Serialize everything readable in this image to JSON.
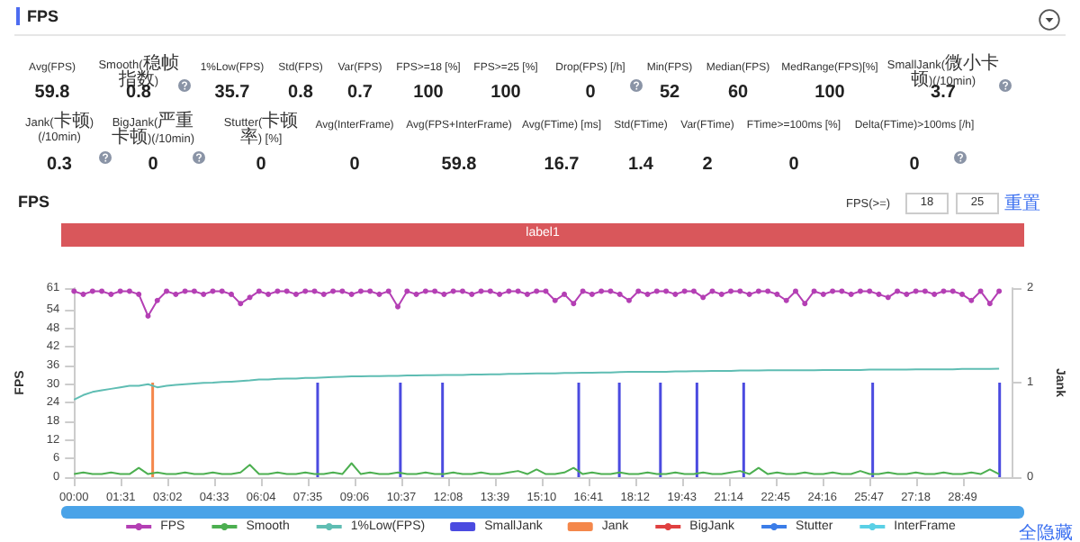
{
  "chart_data": [
    {
      "type": "other",
      "title": "FPS",
      "annotations": [
        "Avg(FPS)",
        "59.8",
        "Smooth(稳帧指数)",
        "0.8",
        "1%Low(FPS)",
        "35.7",
        "Std(FPS)",
        "0.8",
        "Var(FPS)",
        "0.7",
        "FPS>=18 [%]",
        "100",
        "FPS>=25 [%]",
        "100",
        "Drop(FPS) [/h]",
        "0",
        "Min(FPS)",
        "52",
        "Median(FPS)",
        "60",
        "MedRange(FPS)[%]",
        "100",
        "SmallJank(微小卡顿)(/10min)",
        "3.7",
        "Jank(卡顿)(/10min)",
        "0.3",
        "BigJank(严重卡顿)(/10min)",
        "0",
        "Stutter(卡顿率) [%]",
        "0",
        "Avg(InterFrame)",
        "0",
        "Avg(FPS+InterFrame)",
        "59.8",
        "Avg(FTime) [ms]",
        "16.7",
        "Std(FTime)",
        "1.4",
        "Var(FTime)",
        "2",
        "FTime>=100ms [%]",
        "0",
        "Delta(FTime)>100ms [/h]",
        "0"
      ]
    },
    {
      "type": "line",
      "title": "FPS",
      "ylabel": "FPS",
      "y2label": "Jank",
      "legend": "bottom",
      "annotations": [
        "label1",
        "FPS(>=)",
        "18",
        "25",
        "重置",
        "全隐藏"
      ],
      "x": [
        0,
        18,
        36,
        54,
        72,
        90,
        108,
        126,
        144,
        162,
        180,
        198,
        216,
        234,
        252,
        270,
        288,
        306,
        324,
        342,
        360,
        378,
        396,
        414,
        432,
        450,
        468,
        486,
        504,
        522,
        540,
        558,
        576,
        594,
        612,
        630,
        648,
        666,
        684,
        702,
        720,
        738,
        756,
        774,
        792,
        810,
        828,
        846,
        864,
        882,
        900,
        918,
        936,
        954,
        972,
        990,
        1008,
        1026,
        1044,
        1062,
        1080,
        1098,
        1116,
        1134,
        1152,
        1170,
        1188,
        1206,
        1224,
        1242,
        1260,
        1278,
        1296,
        1314,
        1332,
        1350,
        1368,
        1386,
        1404,
        1422,
        1440,
        1458,
        1476,
        1494,
        1512,
        1530,
        1548,
        1566,
        1584,
        1602,
        1620,
        1638,
        1656,
        1674,
        1692,
        1710,
        1728,
        1746,
        1764,
        1782,
        1800
      ],
      "xlim": [
        0,
        1826
      ],
      "xticks": [
        {
          "value": 0,
          "label": "00:00"
        },
        {
          "value": 91,
          "label": "01:31"
        },
        {
          "value": 182,
          "label": "03:02"
        },
        {
          "value": 273,
          "label": "04:33"
        },
        {
          "value": 364,
          "label": "06:04"
        },
        {
          "value": 455,
          "label": "07:35"
        },
        {
          "value": 546,
          "label": "09:06"
        },
        {
          "value": 637,
          "label": "10:37"
        },
        {
          "value": 728,
          "label": "12:08"
        },
        {
          "value": 819,
          "label": "13:39"
        },
        {
          "value": 910,
          "label": "15:10"
        },
        {
          "value": 1001,
          "label": "16:41"
        },
        {
          "value": 1092,
          "label": "18:12"
        },
        {
          "value": 1183,
          "label": "19:43"
        },
        {
          "value": 1274,
          "label": "21:14"
        },
        {
          "value": 1365,
          "label": "22:45"
        },
        {
          "value": 1456,
          "label": "24:16"
        },
        {
          "value": 1547,
          "label": "25:47"
        },
        {
          "value": 1638,
          "label": "27:18"
        },
        {
          "value": 1729,
          "label": "28:49"
        }
      ],
      "ylim": [
        0,
        61
      ],
      "yticks": [
        0,
        6,
        12,
        18,
        24,
        30,
        36,
        42,
        48,
        54,
        61
      ],
      "y2lim": [
        0,
        2
      ],
      "y2ticks": [
        0,
        1,
        2
      ],
      "series": [
        {
          "name": "FPS",
          "color": "#b43fb4",
          "marker": "circle",
          "values": [
            60,
            59,
            60,
            60,
            59,
            60,
            60,
            59,
            52,
            57,
            60,
            59,
            60,
            60,
            59,
            60,
            60,
            59,
            56,
            58,
            60,
            59,
            60,
            60,
            59,
            60,
            60,
            59,
            60,
            60,
            59,
            60,
            60,
            59,
            60,
            55,
            60,
            59,
            60,
            60,
            59,
            60,
            60,
            59,
            60,
            60,
            59,
            60,
            60,
            59,
            60,
            60,
            57,
            59,
            56,
            60,
            59,
            60,
            60,
            59,
            57,
            60,
            59,
            60,
            60,
            59,
            60,
            60,
            58,
            60,
            59,
            60,
            60,
            59,
            60,
            60,
            59,
            57,
            60,
            56,
            60,
            59,
            60,
            60,
            59,
            60,
            60,
            59,
            58,
            60,
            59,
            60,
            60,
            59,
            60,
            60,
            59,
            57,
            60,
            56,
            60
          ]
        },
        {
          "name": "Smooth",
          "color": "#4caf50",
          "values": [
            1,
            1.5,
            1,
            1,
            1.5,
            1,
            1,
            3,
            1,
            1.5,
            1,
            1,
            1.5,
            1,
            1,
            1.5,
            1,
            1,
            1.5,
            4,
            1,
            1,
            1.5,
            1,
            1,
            1.5,
            1,
            1,
            1.5,
            1,
            4.5,
            1,
            1.5,
            1,
            1,
            1.5,
            1,
            1,
            1.5,
            1,
            1,
            1.5,
            1,
            1,
            1.5,
            1,
            1,
            1.5,
            2,
            1,
            2.5,
            1,
            1,
            1.5,
            3,
            1,
            1.5,
            1,
            1,
            1.5,
            1,
            1,
            1.5,
            1,
            1,
            1.5,
            1,
            1,
            1.5,
            1,
            1,
            1.5,
            2,
            1,
            3,
            1,
            1.5,
            1,
            1,
            1.5,
            1,
            1,
            1.5,
            1,
            1,
            2,
            1,
            1,
            1.5,
            1,
            1,
            1.5,
            1,
            1,
            1.5,
            1,
            1,
            1.5,
            1,
            2.5,
            1
          ]
        },
        {
          "name": "1%Low(FPS)",
          "color": "#5fbdb3",
          "values": [
            25,
            26.5,
            27.5,
            28,
            28.5,
            29,
            29.5,
            29.5,
            30,
            29,
            29.5,
            29.8,
            30,
            30.2,
            30.4,
            30.5,
            30.7,
            30.8,
            31,
            31.2,
            31.5,
            31.5,
            31.7,
            31.8,
            31.8,
            32,
            32,
            32.2,
            32.3,
            32.4,
            32.5,
            32.5,
            32.6,
            32.6,
            32.7,
            32.7,
            32.8,
            32.8,
            32.9,
            32.9,
            33,
            33,
            33,
            33.1,
            33.1,
            33.2,
            33.2,
            33.3,
            33.3,
            33.4,
            33.5,
            33.5,
            33.5,
            33.6,
            33.6,
            33.7,
            33.7,
            33.8,
            33.8,
            33.9,
            34,
            34,
            34,
            34,
            34,
            34.1,
            34.1,
            34.2,
            34.2,
            34.3,
            34.3,
            34.3,
            34.4,
            34.4,
            34.4,
            34.5,
            34.5,
            34.5,
            34.5,
            34.5,
            34.5,
            34.6,
            34.6,
            34.6,
            34.6,
            34.6,
            34.7,
            34.7,
            34.7,
            34.7,
            34.7,
            34.8,
            34.8,
            34.8,
            34.8,
            34.8,
            34.9,
            34.9,
            34.9,
            34.9,
            35
          ]
        },
        {
          "name": "SmallJank",
          "color": "#4b4be0",
          "type": "bar",
          "axis": "y2",
          "x": [
            474,
            635,
            717,
            982,
            1061,
            1141,
            1212,
            1303,
            1554,
            1801
          ],
          "values": [
            1,
            1,
            1,
            1,
            1,
            1,
            1,
            1,
            1,
            1
          ]
        },
        {
          "name": "Jank",
          "color": "#f4874b",
          "type": "bar",
          "axis": "y2",
          "x": [
            153
          ],
          "values": [
            1
          ]
        },
        {
          "name": "BigJank",
          "color": "#e04040",
          "values": [
            null,
            null,
            null,
            null,
            null,
            null,
            null,
            null,
            null,
            null,
            null,
            null,
            null,
            null,
            null,
            null,
            null,
            null,
            null,
            null,
            null,
            null,
            null,
            null,
            null,
            null,
            null,
            null,
            null,
            null,
            null,
            null,
            null,
            null,
            null,
            null,
            null,
            null,
            null,
            null,
            null,
            null,
            null,
            null,
            null,
            null,
            null,
            null,
            null,
            null,
            null,
            null,
            null,
            null,
            null,
            null,
            null,
            null,
            null,
            null,
            null,
            null,
            null,
            null,
            null,
            null,
            null,
            null,
            null,
            null,
            null,
            null,
            null,
            null,
            null,
            null,
            null,
            null,
            null,
            null,
            null,
            null,
            null,
            null,
            null,
            null,
            null,
            null,
            null,
            null,
            null,
            null,
            null,
            null,
            null,
            null,
            null,
            null,
            null,
            null,
            null
          ]
        },
        {
          "name": "Stutter",
          "color": "#3b7de8",
          "values": [
            null,
            null,
            null,
            null,
            null,
            null,
            null,
            null,
            null,
            null,
            null,
            null,
            null,
            null,
            null,
            null,
            null,
            null,
            null,
            null,
            null,
            null,
            null,
            null,
            null,
            null,
            null,
            null,
            null,
            null,
            null,
            null,
            null,
            null,
            null,
            null,
            null,
            null,
            null,
            null,
            null,
            null,
            null,
            null,
            null,
            null,
            null,
            null,
            null,
            null,
            null,
            null,
            null,
            null,
            null,
            null,
            null,
            null,
            null,
            null,
            null,
            null,
            null,
            null,
            null,
            null,
            null,
            null,
            null,
            null,
            null,
            null,
            null,
            null,
            null,
            null,
            null,
            null,
            null,
            null,
            null,
            null,
            null,
            null,
            null,
            null,
            null,
            null,
            null,
            null,
            null,
            null,
            null,
            null,
            null,
            null,
            null,
            null,
            null,
            null,
            null
          ]
        },
        {
          "name": "InterFrame",
          "color": "#5ad0e6",
          "values": [
            null,
            null,
            null,
            null,
            null,
            null,
            null,
            null,
            null,
            null,
            null,
            null,
            null,
            null,
            null,
            null,
            null,
            null,
            null,
            null,
            null,
            null,
            null,
            null,
            null,
            null,
            null,
            null,
            null,
            null,
            null,
            null,
            null,
            null,
            null,
            null,
            null,
            null,
            null,
            null,
            null,
            null,
            null,
            null,
            null,
            null,
            null,
            null,
            null,
            null,
            null,
            null,
            null,
            null,
            null,
            null,
            null,
            null,
            null,
            null,
            null,
            null,
            null,
            null,
            null,
            null,
            null,
            null,
            null,
            null,
            null,
            null,
            null,
            null,
            null,
            null,
            null,
            null,
            null,
            null,
            null,
            null,
            null,
            null,
            null,
            null,
            null,
            null,
            null,
            null,
            null,
            null,
            null,
            null,
            null,
            null,
            null,
            null,
            null,
            null,
            null
          ]
        }
      ]
    }
  ]
}
